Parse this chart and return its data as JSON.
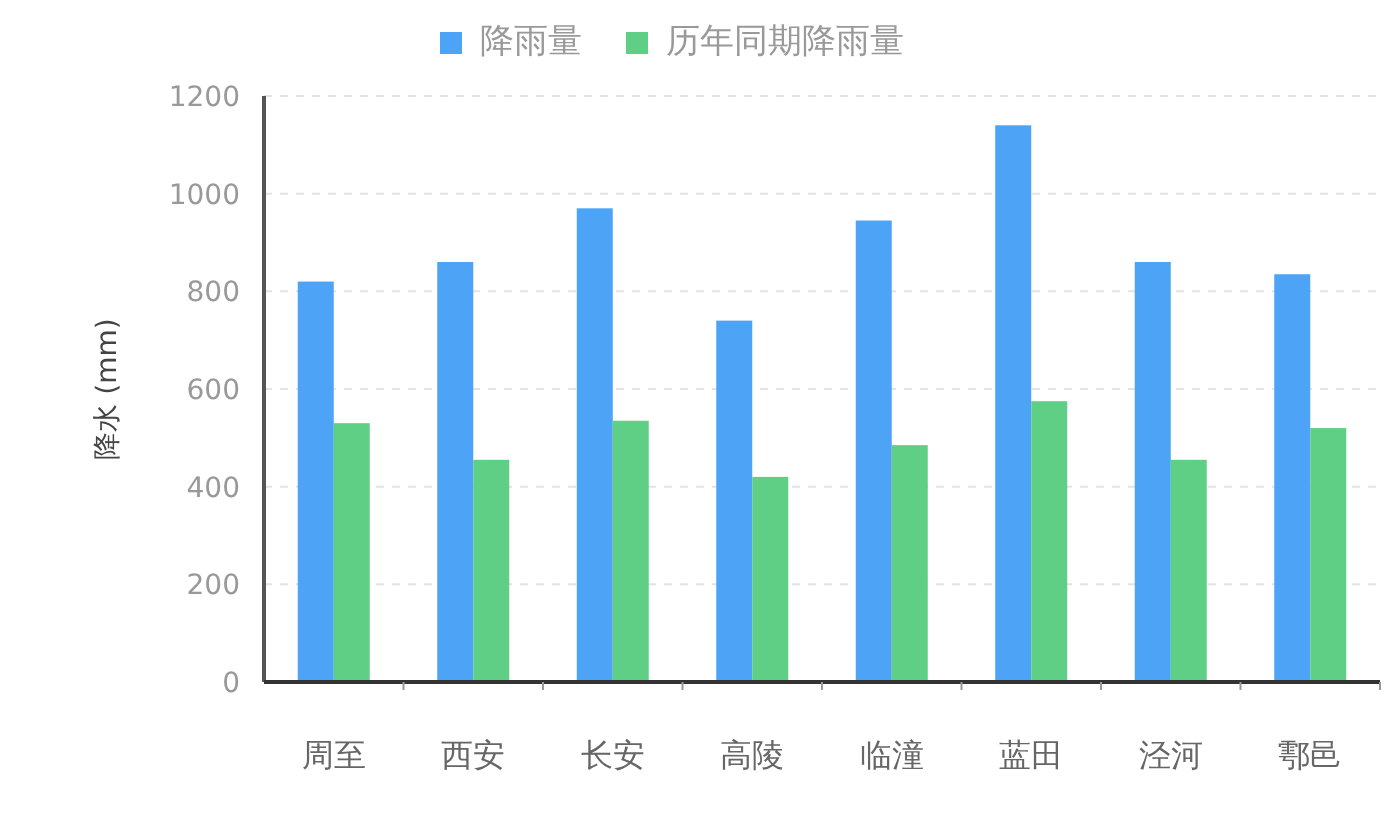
{
  "chart_data": {
    "type": "bar",
    "ylabel": "降水 (mm)",
    "categories": [
      "周至",
      "西安",
      "长安",
      "高陵",
      "临潼",
      "蓝田",
      "泾河",
      "鄠邑"
    ],
    "series": [
      {
        "name": "降雨量",
        "color": "#4da3f5",
        "values": [
          820,
          860,
          970,
          740,
          945,
          1140,
          860,
          835
        ]
      },
      {
        "name": "历年同期降雨量",
        "color": "#5fcf85",
        "values": [
          530,
          455,
          535,
          420,
          485,
          575,
          455,
          520
        ]
      }
    ],
    "ylim": [
      0,
      1200
    ],
    "yticks": [
      0,
      200,
      400,
      600,
      800,
      1000,
      1200
    ],
    "grid": "y",
    "legend": "top"
  }
}
